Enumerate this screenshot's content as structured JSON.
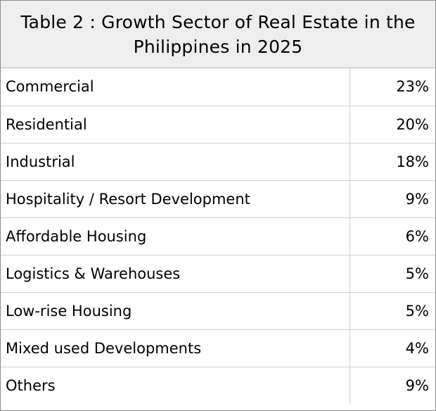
{
  "chart_data": {
    "type": "table",
    "title": "Table 2 : Growth Sector of Real Estate in the Philippines in 2025",
    "rows": [
      {
        "sector": "Commercial",
        "share": "23%"
      },
      {
        "sector": "Residential",
        "share": "20%"
      },
      {
        "sector": "Industrial",
        "share": "18%"
      },
      {
        "sector": "Hospitality / Resort Development",
        "share": "9%"
      },
      {
        "sector": "Affordable Housing",
        "share": "6%"
      },
      {
        "sector": "Logistics & Warehouses",
        "share": "5%"
      },
      {
        "sector": "Low-rise Housing",
        "share": "5%"
      },
      {
        "sector": "Mixed used Developments",
        "share": "4%"
      },
      {
        "sector": "Others",
        "share": "9%"
      }
    ]
  }
}
